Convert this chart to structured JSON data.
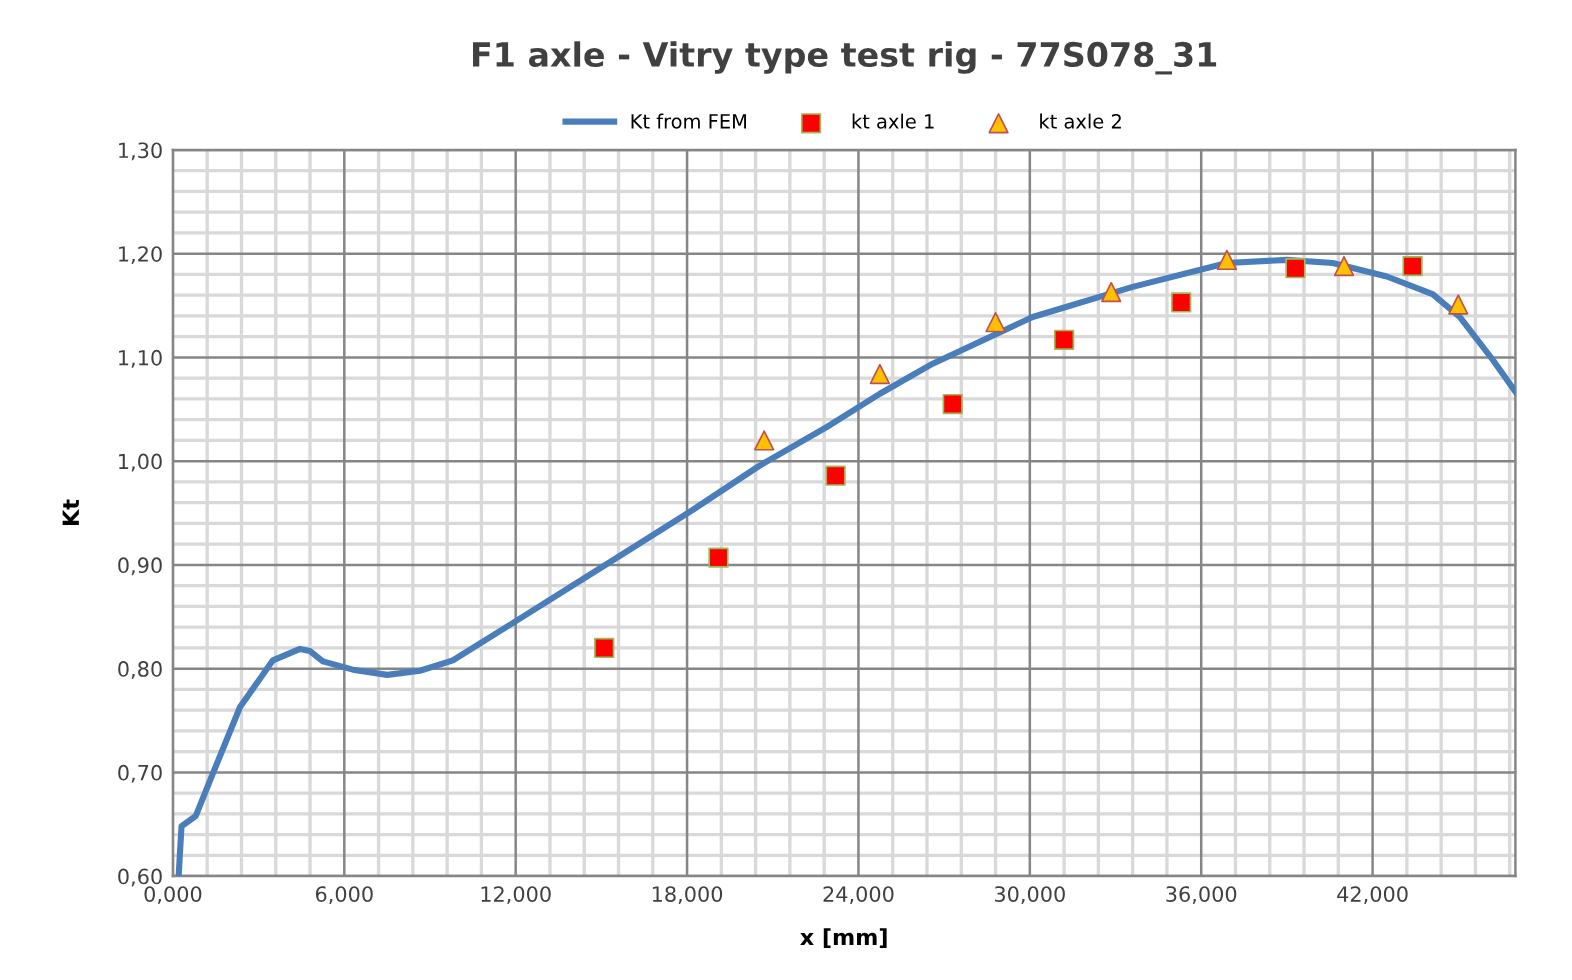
{
  "chart_data": {
    "type": "line",
    "title": "F1 axle - Vitry type test rig - 77S078_31",
    "xlabel": "x [mm]",
    "ylabel": "Kt",
    "xlim": [
      0,
      47
    ],
    "ylim": [
      0.6,
      1.3
    ],
    "xticks": [
      {
        "value": 0,
        "label": "0,000"
      },
      {
        "value": 1.2,
        "label": null
      },
      {
        "value": 2.4,
        "label": null
      },
      {
        "value": 3.6,
        "label": null
      },
      {
        "value": 4.8,
        "label": null
      },
      {
        "value": 6,
        "label": "6,000"
      },
      {
        "value": 7.2,
        "label": null
      },
      {
        "value": 8.4,
        "label": null
      },
      {
        "value": 9.6,
        "label": null
      },
      {
        "value": 10.8,
        "label": null
      },
      {
        "value": 12,
        "label": "12,000"
      },
      {
        "value": 13.2,
        "label": null
      },
      {
        "value": 14.4,
        "label": null
      },
      {
        "value": 15.6,
        "label": null
      },
      {
        "value": 16.8,
        "label": null
      },
      {
        "value": 18,
        "label": "18,000"
      },
      {
        "value": 19.2,
        "label": null
      },
      {
        "value": 20.4,
        "label": null
      },
      {
        "value": 21.6,
        "label": null
      },
      {
        "value": 22.8,
        "label": null
      },
      {
        "value": 24,
        "label": "24,000"
      },
      {
        "value": 25.2,
        "label": null
      },
      {
        "value": 26.4,
        "label": null
      },
      {
        "value": 27.6,
        "label": null
      },
      {
        "value": 28.8,
        "label": null
      },
      {
        "value": 30,
        "label": "30,000"
      },
      {
        "value": 31.2,
        "label": null
      },
      {
        "value": 32.4,
        "label": null
      },
      {
        "value": 33.6,
        "label": null
      },
      {
        "value": 34.8,
        "label": null
      },
      {
        "value": 36,
        "label": "36,000"
      },
      {
        "value": 37.2,
        "label": null
      },
      {
        "value": 38.4,
        "label": null
      },
      {
        "value": 39.6,
        "label": null
      },
      {
        "value": 40.8,
        "label": null
      },
      {
        "value": 42,
        "label": "42,000"
      },
      {
        "value": 43.2,
        "label": null
      },
      {
        "value": 44.4,
        "label": null
      },
      {
        "value": 45.6,
        "label": null
      },
      {
        "value": 46.8,
        "label": null
      }
    ],
    "yticks": [
      {
        "value": 0.6,
        "label": "0,60"
      },
      {
        "value": 0.62,
        "label": null
      },
      {
        "value": 0.64,
        "label": null
      },
      {
        "value": 0.66,
        "label": null
      },
      {
        "value": 0.68,
        "label": null
      },
      {
        "value": 0.7,
        "label": "0,70"
      },
      {
        "value": 0.72,
        "label": null
      },
      {
        "value": 0.74,
        "label": null
      },
      {
        "value": 0.76,
        "label": null
      },
      {
        "value": 0.78,
        "label": null
      },
      {
        "value": 0.8,
        "label": "0,80"
      },
      {
        "value": 0.82,
        "label": null
      },
      {
        "value": 0.84,
        "label": null
      },
      {
        "value": 0.86,
        "label": null
      },
      {
        "value": 0.88,
        "label": null
      },
      {
        "value": 0.9,
        "label": "0,90"
      },
      {
        "value": 0.92,
        "label": null
      },
      {
        "value": 0.94,
        "label": null
      },
      {
        "value": 0.96,
        "label": null
      },
      {
        "value": 0.98,
        "label": null
      },
      {
        "value": 1.0,
        "label": "1,00"
      },
      {
        "value": 1.02,
        "label": null
      },
      {
        "value": 1.04,
        "label": null
      },
      {
        "value": 1.06,
        "label": null
      },
      {
        "value": 1.08,
        "label": null
      },
      {
        "value": 1.1,
        "label": "1,10"
      },
      {
        "value": 1.12,
        "label": null
      },
      {
        "value": 1.14,
        "label": null
      },
      {
        "value": 1.16,
        "label": null
      },
      {
        "value": 1.18,
        "label": null
      },
      {
        "value": 1.2,
        "label": "1,20"
      },
      {
        "value": 1.22,
        "label": null
      },
      {
        "value": 1.24,
        "label": null
      },
      {
        "value": 1.26,
        "label": null
      },
      {
        "value": 1.28,
        "label": null
      },
      {
        "value": 1.3,
        "label": "1,30"
      }
    ],
    "grid": true,
    "legend": "top",
    "series": [
      {
        "name": "Kt from FEM",
        "color": "#4a7ebb",
        "marker": "none",
        "line_style": "solid",
        "x": [
          0.2,
          0.3,
          0.8,
          1.4,
          2.35,
          3.5,
          4.45,
          4.8,
          5.25,
          6.3,
          7.5,
          8.65,
          9.8,
          11.9,
          15.2,
          18.2,
          20.5,
          22.9,
          24.75,
          26.6,
          30.1,
          33.6,
          36.9,
          39.0,
          40.6,
          42.5,
          44.1,
          45.05,
          46.2,
          47.0
        ],
        "values": [
          0.6,
          0.648,
          0.658,
          0.699,
          0.763,
          0.808,
          0.819,
          0.817,
          0.807,
          0.799,
          0.794,
          0.798,
          0.808,
          0.844,
          0.901,
          0.953,
          0.995,
          1.033,
          1.065,
          1.094,
          1.139,
          1.168,
          1.191,
          1.194,
          1.191,
          1.178,
          1.161,
          1.139,
          1.098,
          1.067
        ]
      },
      {
        "name": "kt axle 1",
        "type": "scatter",
        "color": "#ff0000",
        "marker": "square",
        "x": [
          15.1,
          19.1,
          23.2,
          27.3,
          31.2,
          35.3,
          39.3,
          43.4
        ],
        "values": [
          0.82,
          0.907,
          0.986,
          1.055,
          1.117,
          1.153,
          1.186,
          1.188
        ]
      },
      {
        "name": "kt axle 2",
        "type": "scatter",
        "color": "#ffc000",
        "marker": "triangle",
        "x": [
          20.7,
          24.75,
          28.8,
          32.85,
          36.9,
          41.0,
          45.0
        ],
        "values": [
          1.02,
          1.084,
          1.134,
          1.163,
          1.194,
          1.188,
          1.151
        ]
      }
    ]
  }
}
